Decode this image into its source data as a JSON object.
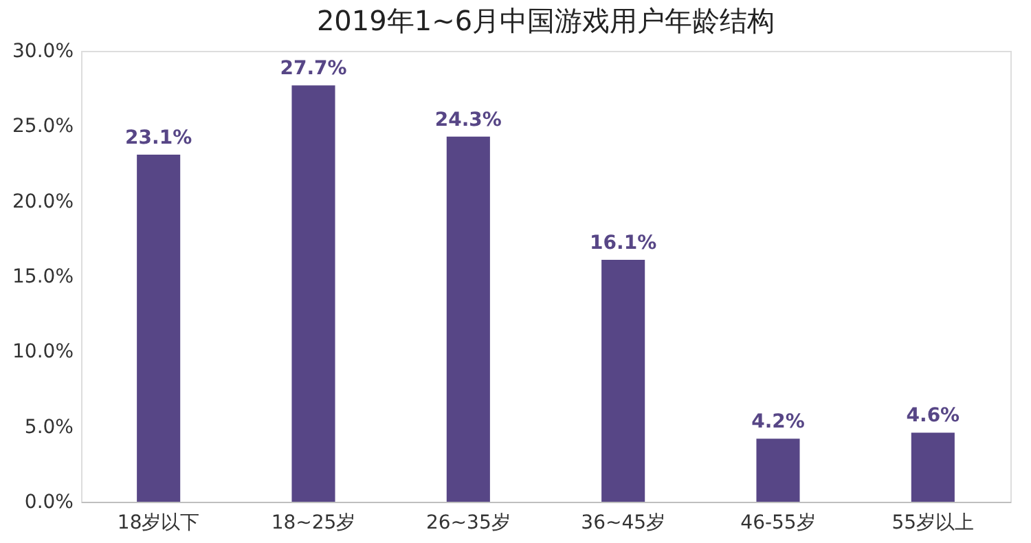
{
  "chart_data": {
    "type": "bar",
    "title": "2019年1~6月中国游戏用户年龄结构",
    "categories": [
      "18岁以下",
      "18~25岁",
      "26~35岁",
      "36~45岁",
      "46-55岁",
      "55岁以上"
    ],
    "values": [
      23.1,
      27.7,
      24.3,
      16.1,
      4.2,
      4.6
    ],
    "value_labels": [
      "23.1%",
      "27.7%",
      "24.3%",
      "16.1%",
      "4.2%",
      "4.6%"
    ],
    "color": "#574686",
    "ylim": [
      0,
      30
    ],
    "yticks": [
      {
        "value": 0,
        "label": "0.0%"
      },
      {
        "value": 5,
        "label": "5.0%"
      },
      {
        "value": 10,
        "label": "10.0%"
      },
      {
        "value": 15,
        "label": "15.0%"
      },
      {
        "value": 20,
        "label": "20.0%"
      },
      {
        "value": 25,
        "label": "25.0%"
      },
      {
        "value": 30,
        "label": "30.0%"
      }
    ],
    "grid": false
  }
}
